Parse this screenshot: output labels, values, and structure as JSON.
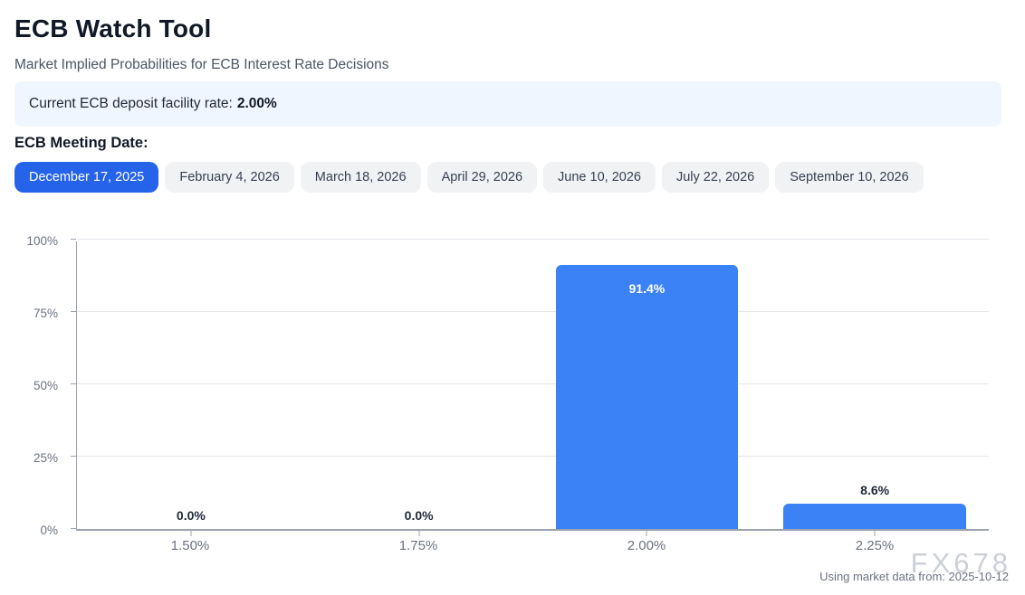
{
  "page": {
    "title": "ECB Watch Tool",
    "subtitle": "Market Implied Probabilities for ECB Interest Rate Decisions"
  },
  "rate_banner": {
    "label": "Current ECB deposit facility rate:",
    "value": "2.00%"
  },
  "meeting_section": {
    "heading": "ECB Meeting Date:",
    "tabs": [
      {
        "label": "December 17, 2025",
        "active": true
      },
      {
        "label": "February 4, 2026",
        "active": false
      },
      {
        "label": "March 18, 2026",
        "active": false
      },
      {
        "label": "April 29, 2026",
        "active": false
      },
      {
        "label": "June 10, 2026",
        "active": false
      },
      {
        "label": "July 22, 2026",
        "active": false
      },
      {
        "label": "September 10, 2026",
        "active": false
      }
    ]
  },
  "chart_data": {
    "type": "bar",
    "categories": [
      "1.50%",
      "1.75%",
      "2.00%",
      "2.25%"
    ],
    "values": [
      0.0,
      0.0,
      91.4,
      8.6
    ],
    "value_labels": [
      "0.0%",
      "0.0%",
      "91.4%",
      "8.6%"
    ],
    "title": "",
    "xlabel": "",
    "ylabel": "",
    "ylim": [
      0,
      100
    ],
    "yticks": [
      "0%",
      "25%",
      "50%",
      "75%",
      "100%"
    ],
    "grid": true,
    "legend": "none",
    "bar_color": "#3b82f6"
  },
  "footer": {
    "watermark": "FX678",
    "source_note": "Using market data from: 2025-10-12"
  },
  "colors": {
    "accent_blue": "#2563eb",
    "bar_blue": "#3b82f6",
    "info_banner_bg": "#eff6ff",
    "tab_inactive_bg": "#f1f2f4",
    "axis_gray": "#9ca3af",
    "gridline_gray": "#e5e6ea",
    "tick_label_gray": "#6b7280"
  }
}
